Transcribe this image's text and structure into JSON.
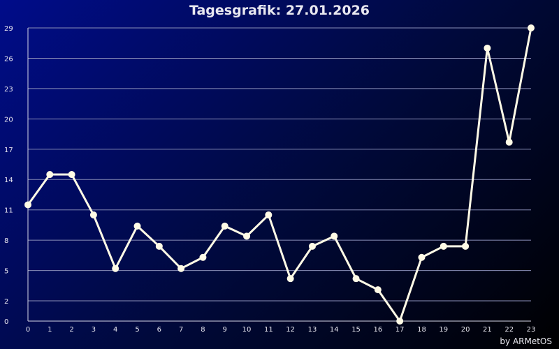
{
  "chart_data": {
    "type": "line",
    "title": "Tagesgrafik: 27.01.2026",
    "xlabel": "",
    "ylabel": "",
    "x": [
      0,
      1,
      2,
      3,
      4,
      5,
      6,
      7,
      8,
      9,
      10,
      11,
      12,
      13,
      14,
      15,
      16,
      17,
      18,
      19,
      20,
      21,
      22,
      23
    ],
    "series": [
      {
        "values": [
          11.5,
          14.5,
          14.5,
          10.5,
          5.2,
          9.4,
          7.4,
          5.2,
          6.3,
          9.4,
          8.4,
          10.5,
          4.2,
          7.4,
          8.4,
          4.2,
          3.1,
          0,
          6.3,
          7.4,
          7.4,
          27,
          17.7,
          29
        ]
      }
    ],
    "ylim": [
      0,
      29
    ],
    "yticks": [
      "0",
      "2",
      "5",
      "8",
      "11",
      "14",
      "17",
      "20",
      "23",
      "26",
      "29"
    ],
    "xticks": [
      "0",
      "1",
      "2",
      "3",
      "4",
      "5",
      "6",
      "7",
      "8",
      "9",
      "10",
      "11",
      "12",
      "13",
      "14",
      "15",
      "16",
      "17",
      "18",
      "19",
      "20",
      "21",
      "22",
      "23"
    ],
    "grid": true,
    "legend": "none",
    "line_color": "#fffbe6",
    "grid_color": "#8a8fb8"
  },
  "credit": "by ARMetOS"
}
